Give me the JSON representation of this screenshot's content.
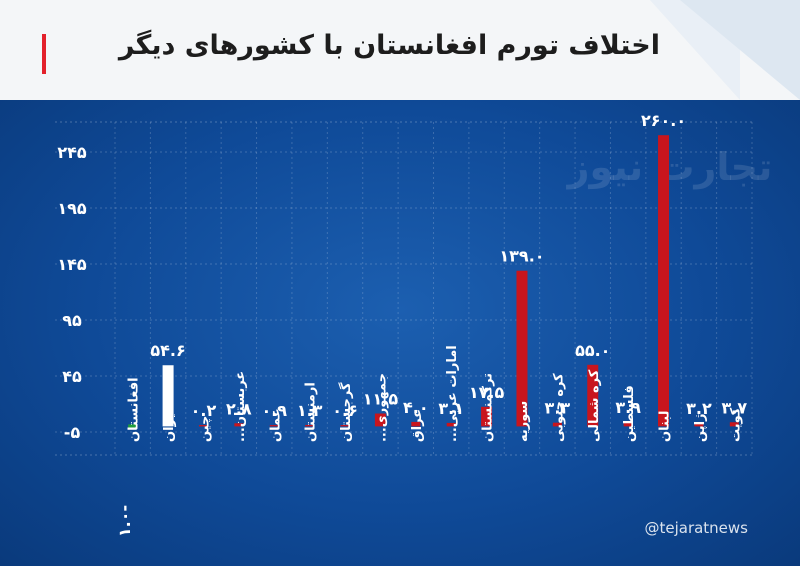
{
  "title": "اختلاف تورم افغانستان با کشورهای دیگر",
  "watermark": "تجارت نیوز",
  "handle": "@tejaratnews",
  "colors": {
    "background": "#0f4a98",
    "bar_default": "#c8151d",
    "bar_iran": "#ffffff",
    "bar_afghanistan": "#1f9d3b",
    "accent": "#e3212b"
  },
  "chart_data": {
    "type": "bar",
    "ylim": [
      -5,
      260
    ],
    "yticks": [
      -5,
      45,
      95,
      145,
      195,
      245
    ],
    "ytick_labels": [
      "-۵",
      "۴۵",
      "۹۵",
      "۱۴۵",
      "۱۹۵",
      "۲۴۵"
    ],
    "grid": true,
    "categories": [
      "افغانستان",
      "ایران",
      "چین",
      "عربستان...",
      "عمان",
      "ارمنستان",
      "گرجستان",
      "جمهوری...",
      "عراق",
      "امارات عربی...",
      "ترکمنستان",
      "سوریه",
      "کره جنوبی",
      "کره شمالی",
      "فلسطین",
      "لبنان",
      "ژاپن",
      "کویت"
    ],
    "values": [
      -1.0,
      54.6,
      0.2,
      2.8,
      0.9,
      1.3,
      0.6,
      11.5,
      4.0,
      3.1,
      17.5,
      139.0,
      3.3,
      55.0,
      3.9,
      260.0,
      3.2,
      3.7
    ],
    "value_labels": [
      "-۱.۰",
      "۵۴.۶",
      "۰.۲",
      "۲.۸",
      "۰.۹",
      "۱.۳",
      "۰.۶",
      "۱۱.۵",
      "۴.۰",
      "۳.۱",
      "۱۷.۵",
      "۱۳۹.۰",
      "۳.۳",
      "۵۵.۰",
      "۳.۹",
      "۲۶۰.۰",
      "۳.۲",
      "۳.۷"
    ]
  }
}
